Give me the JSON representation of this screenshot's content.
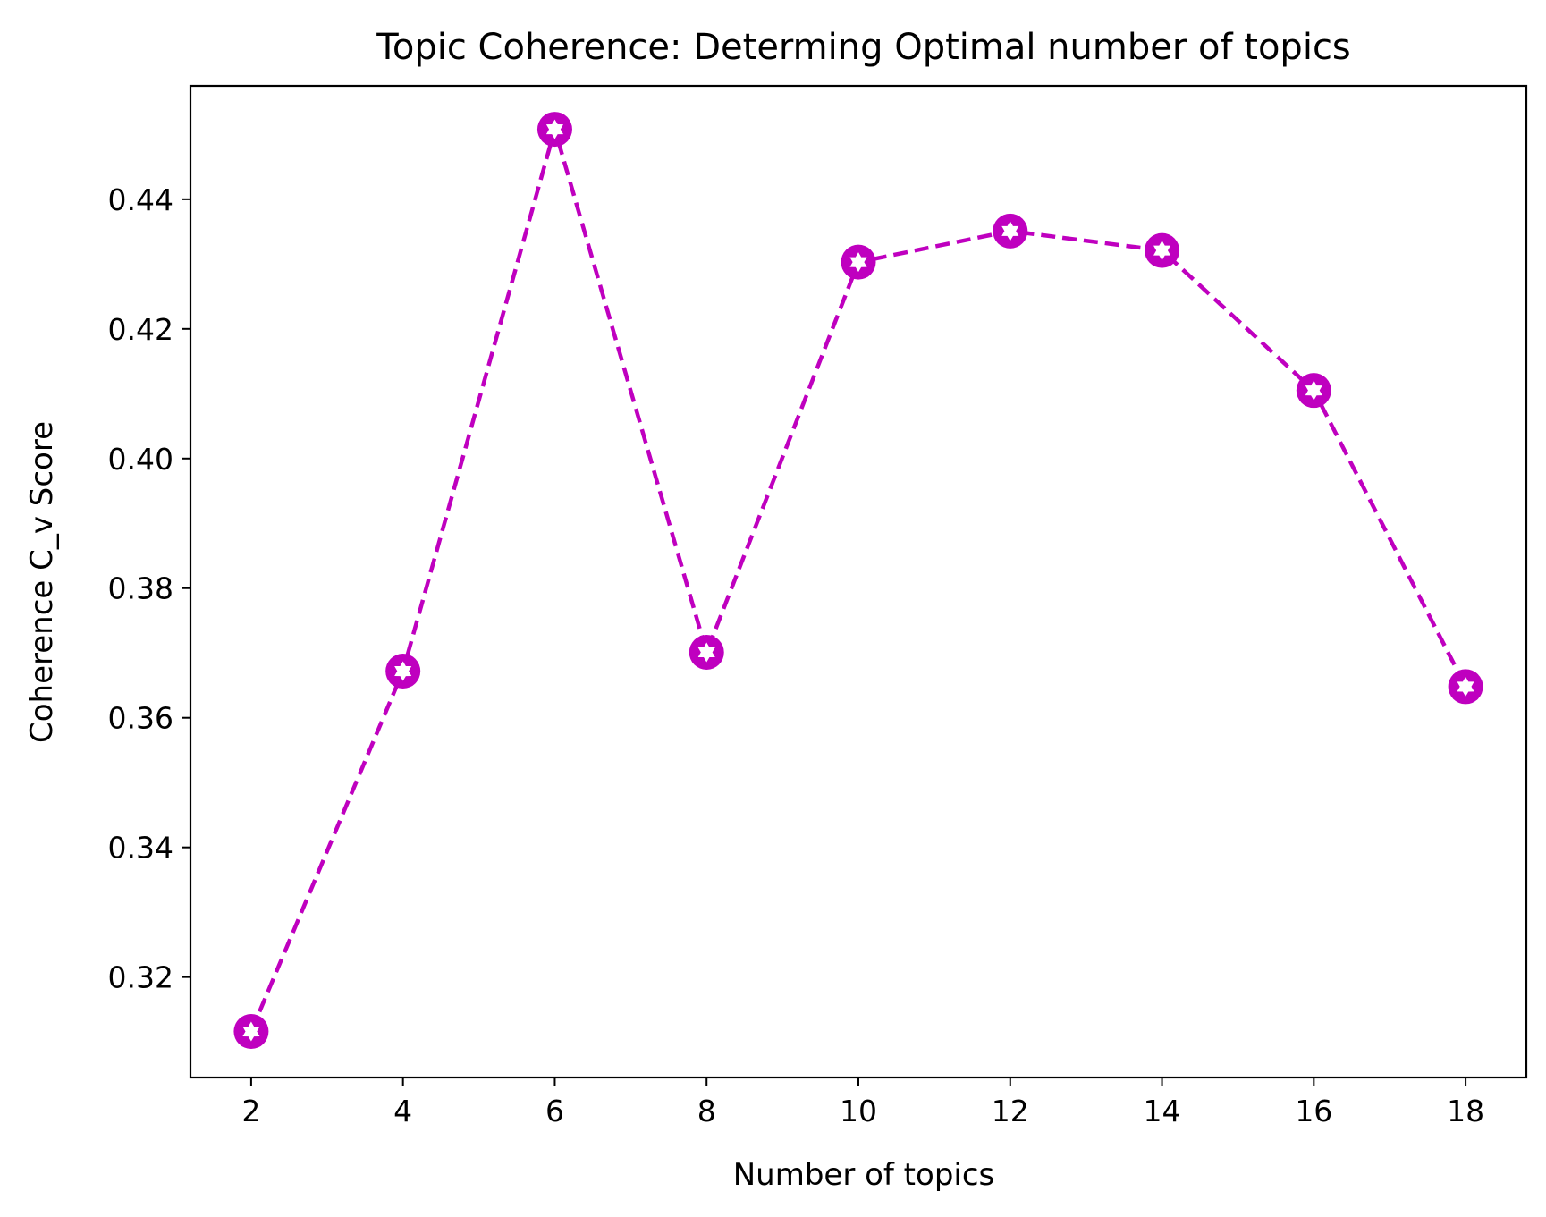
{
  "chart_data": {
    "type": "line",
    "title": "Topic Coherence: Determing Optimal number of topics",
    "xlabel": "Number of topics",
    "ylabel": "Coherence C_v Score",
    "x": [
      2,
      4,
      6,
      8,
      10,
      12,
      14,
      16,
      18
    ],
    "series": [
      {
        "values": [
          0.3116,
          0.3672,
          0.4508,
          0.3701,
          0.4303,
          0.4351,
          0.4321,
          0.4105,
          0.3648
        ],
        "color": "#bf00bf",
        "line_style": "dashed",
        "marker": "circle-with-white-star"
      }
    ],
    "xlim": [
      1.2,
      18.8
    ],
    "ylim": [
      0.3045,
      0.4575
    ],
    "xticks": [
      "2",
      "4",
      "6",
      "8",
      "10",
      "12",
      "14",
      "16",
      "18"
    ],
    "yticks": [
      "0.32",
      "0.34",
      "0.36",
      "0.38",
      "0.40",
      "0.42",
      "0.44"
    ],
    "grid": false,
    "legend": "none"
  }
}
